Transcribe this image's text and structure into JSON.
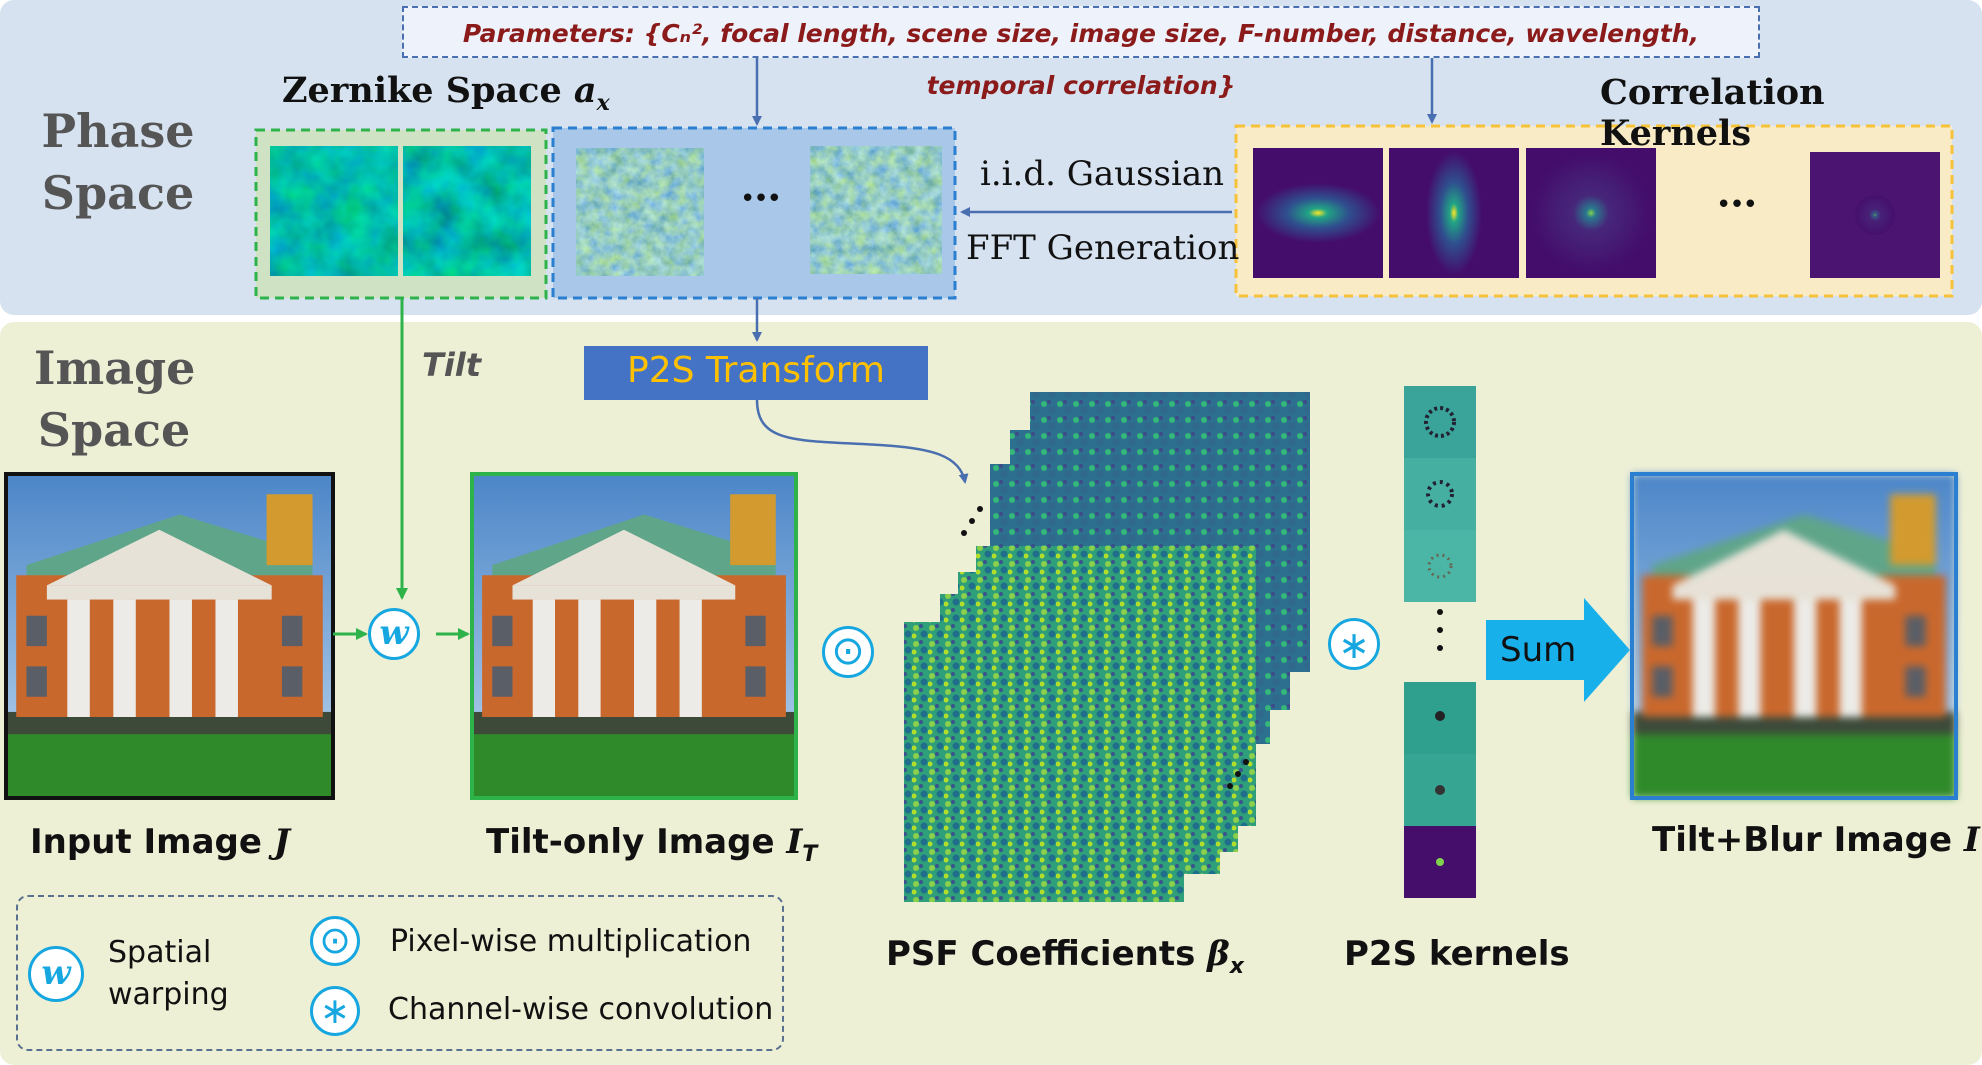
{
  "colors": {
    "top_panel": "#d6e2f0",
    "bottom_panel": "#eef0d6",
    "accent_cyan": "#17a7e0",
    "p2s_blue": "#4472c4",
    "p2s_text": "#ffc000",
    "param_red": "#8b1a1a",
    "green_border": "#2db34a",
    "blue_border": "#2a7fd0",
    "yellow_border": "#f5c23a"
  },
  "parameters_text": "Parameters: {Cₙ², focal length, scene size, image size, F-number, distance, wavelength, temporal correlation}",
  "phase_space": {
    "title_line1": "Phase",
    "title_line2": "Space"
  },
  "image_space": {
    "title_line1": "Image",
    "title_line2": "Space"
  },
  "zernike": {
    "label": "Zernike Space ",
    "symbol": "a",
    "subscript": "x"
  },
  "correlation_kernels": {
    "label": "Correlation Kernels"
  },
  "iid_gaussian": "i.i.d. Gaussian",
  "fft_generation": "FFT Generation",
  "ellipsis": "•••",
  "tilt": "Tilt",
  "p2s_transform": "P2S Transform",
  "warp_symbol": "w",
  "mult_symbol": "⊙",
  "conv_symbol": "∗",
  "sum": "Sum",
  "input_image": {
    "label": "Input Image ",
    "symbol": "J"
  },
  "tilt_only_image": {
    "label": "Tilt-only Image ",
    "symbol": "I",
    "subscript": "T"
  },
  "tilt_blur_image": {
    "label": "Tilt+Blur Image ",
    "symbol": "I"
  },
  "psf_coefficients": {
    "label": "PSF Coefficients ",
    "symbol": "β",
    "subscript": "x"
  },
  "p2s_kernels": {
    "label": "P2S kernels"
  },
  "legend": {
    "spatial_warping_line1": "Spatial",
    "spatial_warping_line2": "warping",
    "pixel_multiplication": "Pixel-wise multiplication",
    "channel_convolution": "Channel-wise convolution"
  }
}
